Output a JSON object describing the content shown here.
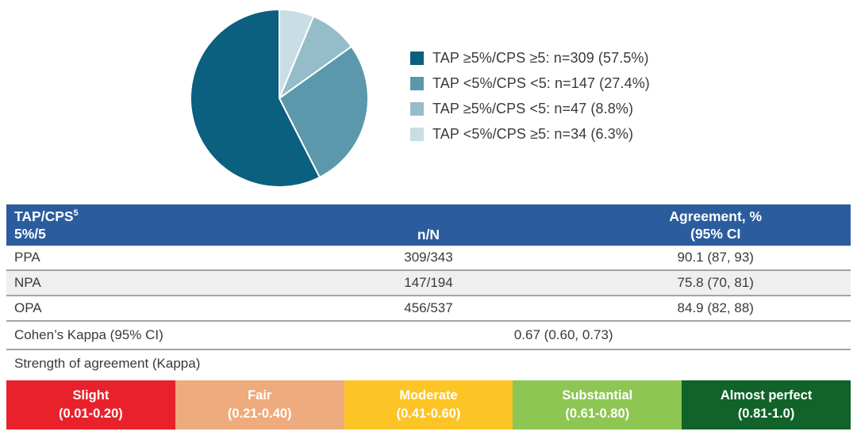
{
  "chart_data": {
    "type": "pie",
    "title": "",
    "legend_position": "right",
    "start": "12-oclock, slices drawn clockwise in reverse legend order",
    "slices": [
      {
        "label": "TAP ≥5%/CPS ≥5: n=309 (57.5%)",
        "group": "TAP ≥5%/CPS ≥5",
        "n": 309,
        "pct": 57.5,
        "color": "#0b5f7f"
      },
      {
        "label": "TAP <5%/CPS <5: n=147 (27.4%)",
        "group": "TAP <5%/CPS <5",
        "n": 147,
        "pct": 27.4,
        "color": "#5b98ab"
      },
      {
        "label": "TAP ≥5%/CPS <5: n=47 (8.8%)",
        "group": "TAP ≥5%/CPS <5",
        "n": 47,
        "pct": 8.8,
        "color": "#95bcc9"
      },
      {
        "label": "TAP <5%/CPS ≥5: n=34 (6.3%)",
        "group": "TAP <5%/CPS ≥5",
        "n": 34,
        "pct": 6.3,
        "color": "#c9dde5"
      }
    ]
  },
  "table": {
    "header": {
      "col1_line1": "TAP/CPS",
      "col1_sup": "5",
      "col1_line2": "5%/5",
      "col2": "n/N",
      "col3_line1": "Agreement, %",
      "col3_line2": "(95% CI"
    },
    "rows": [
      {
        "label": "PPA",
        "n_N": "309/343",
        "agreement": "90.1 (87, 93)"
      },
      {
        "label": "NPA",
        "n_N": "147/194",
        "agreement": "75.8 (70, 81)"
      },
      {
        "label": "OPA",
        "n_N": "456/537",
        "agreement": "84.9 (82, 88)"
      }
    ],
    "kappa_row": {
      "label": "Cohen’s Kappa (95% CI)",
      "value": "0.67 (0.60, 0.73)"
    },
    "strength_label": "Strength of agreement (Kappa)"
  },
  "kappa_scale": {
    "segments": [
      {
        "label": "Slight",
        "range": "(0.01-0.20)",
        "color": "#e9212b"
      },
      {
        "label": "Fair",
        "range": "(0.21-0.40)",
        "color": "#eeab7d"
      },
      {
        "label": "Moderate",
        "range": "(0.41-0.60)",
        "color": "#fcc425"
      },
      {
        "label": "Substantial",
        "range": "(0.61-0.80)",
        "color": "#8dc653"
      },
      {
        "label": "Almost perfect",
        "range": "(0.81-1.0)",
        "color": "#11632a"
      }
    ]
  },
  "colors": {
    "table_header_bg": "#2b5d9e",
    "row_alt_bg": "#efefef",
    "divider": "#a3a3a3"
  }
}
